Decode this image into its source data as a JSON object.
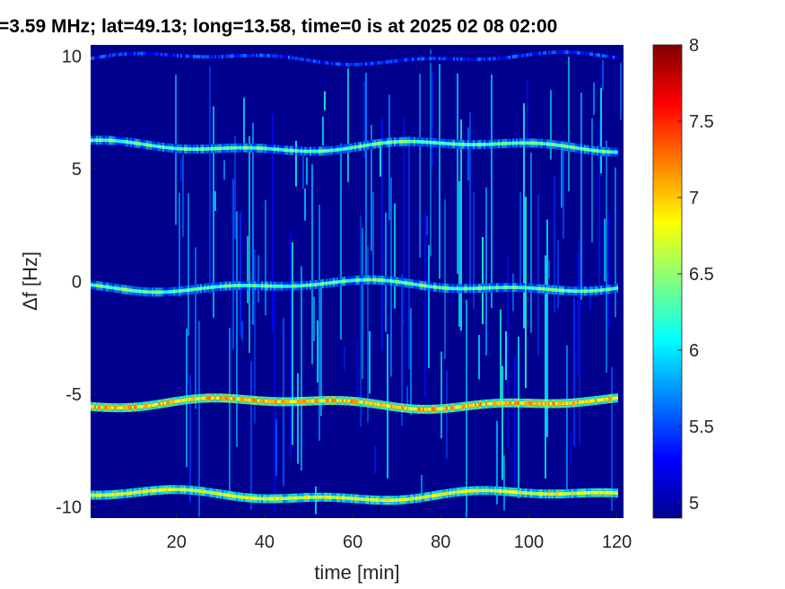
{
  "chart_data": {
    "type": "heatmap",
    "title": "=3.59 MHz;  lat=49.13; long=13.58, time=0 is at 2025 02 08 02:00",
    "xlabel": "time [min]",
    "ylabel": "Δf [Hz]",
    "xlim": [
      0.5,
      121.5
    ],
    "ylim": [
      -10.5,
      10.5
    ],
    "x_ticks": [
      20,
      40,
      60,
      80,
      100,
      120
    ],
    "y_ticks": [
      10,
      5,
      0,
      -5,
      -10
    ],
    "colorbar": {
      "range": [
        4.9,
        8
      ],
      "ticks": [
        "5",
        "5.5",
        "6",
        "6.5",
        "7",
        "7.5",
        "8"
      ],
      "colormap": "jet"
    },
    "background_value": 4.9,
    "noise_onset_min": 19,
    "bands": [
      {
        "center_hz": 9.9,
        "value": 5.4,
        "start_min": 0,
        "end_min": 120
      },
      {
        "center_hz": 6.0,
        "value": 6.3,
        "start_min": 0,
        "end_min": 120
      },
      {
        "center_hz": -0.2,
        "value": 6.3,
        "start_min": 0,
        "end_min": 120
      },
      {
        "center_hz": -5.4,
        "value": 7.0,
        "start_min": 0,
        "end_min": 120
      },
      {
        "center_hz": -9.5,
        "value": 6.7,
        "start_min": 0,
        "end_min": 120
      }
    ]
  }
}
